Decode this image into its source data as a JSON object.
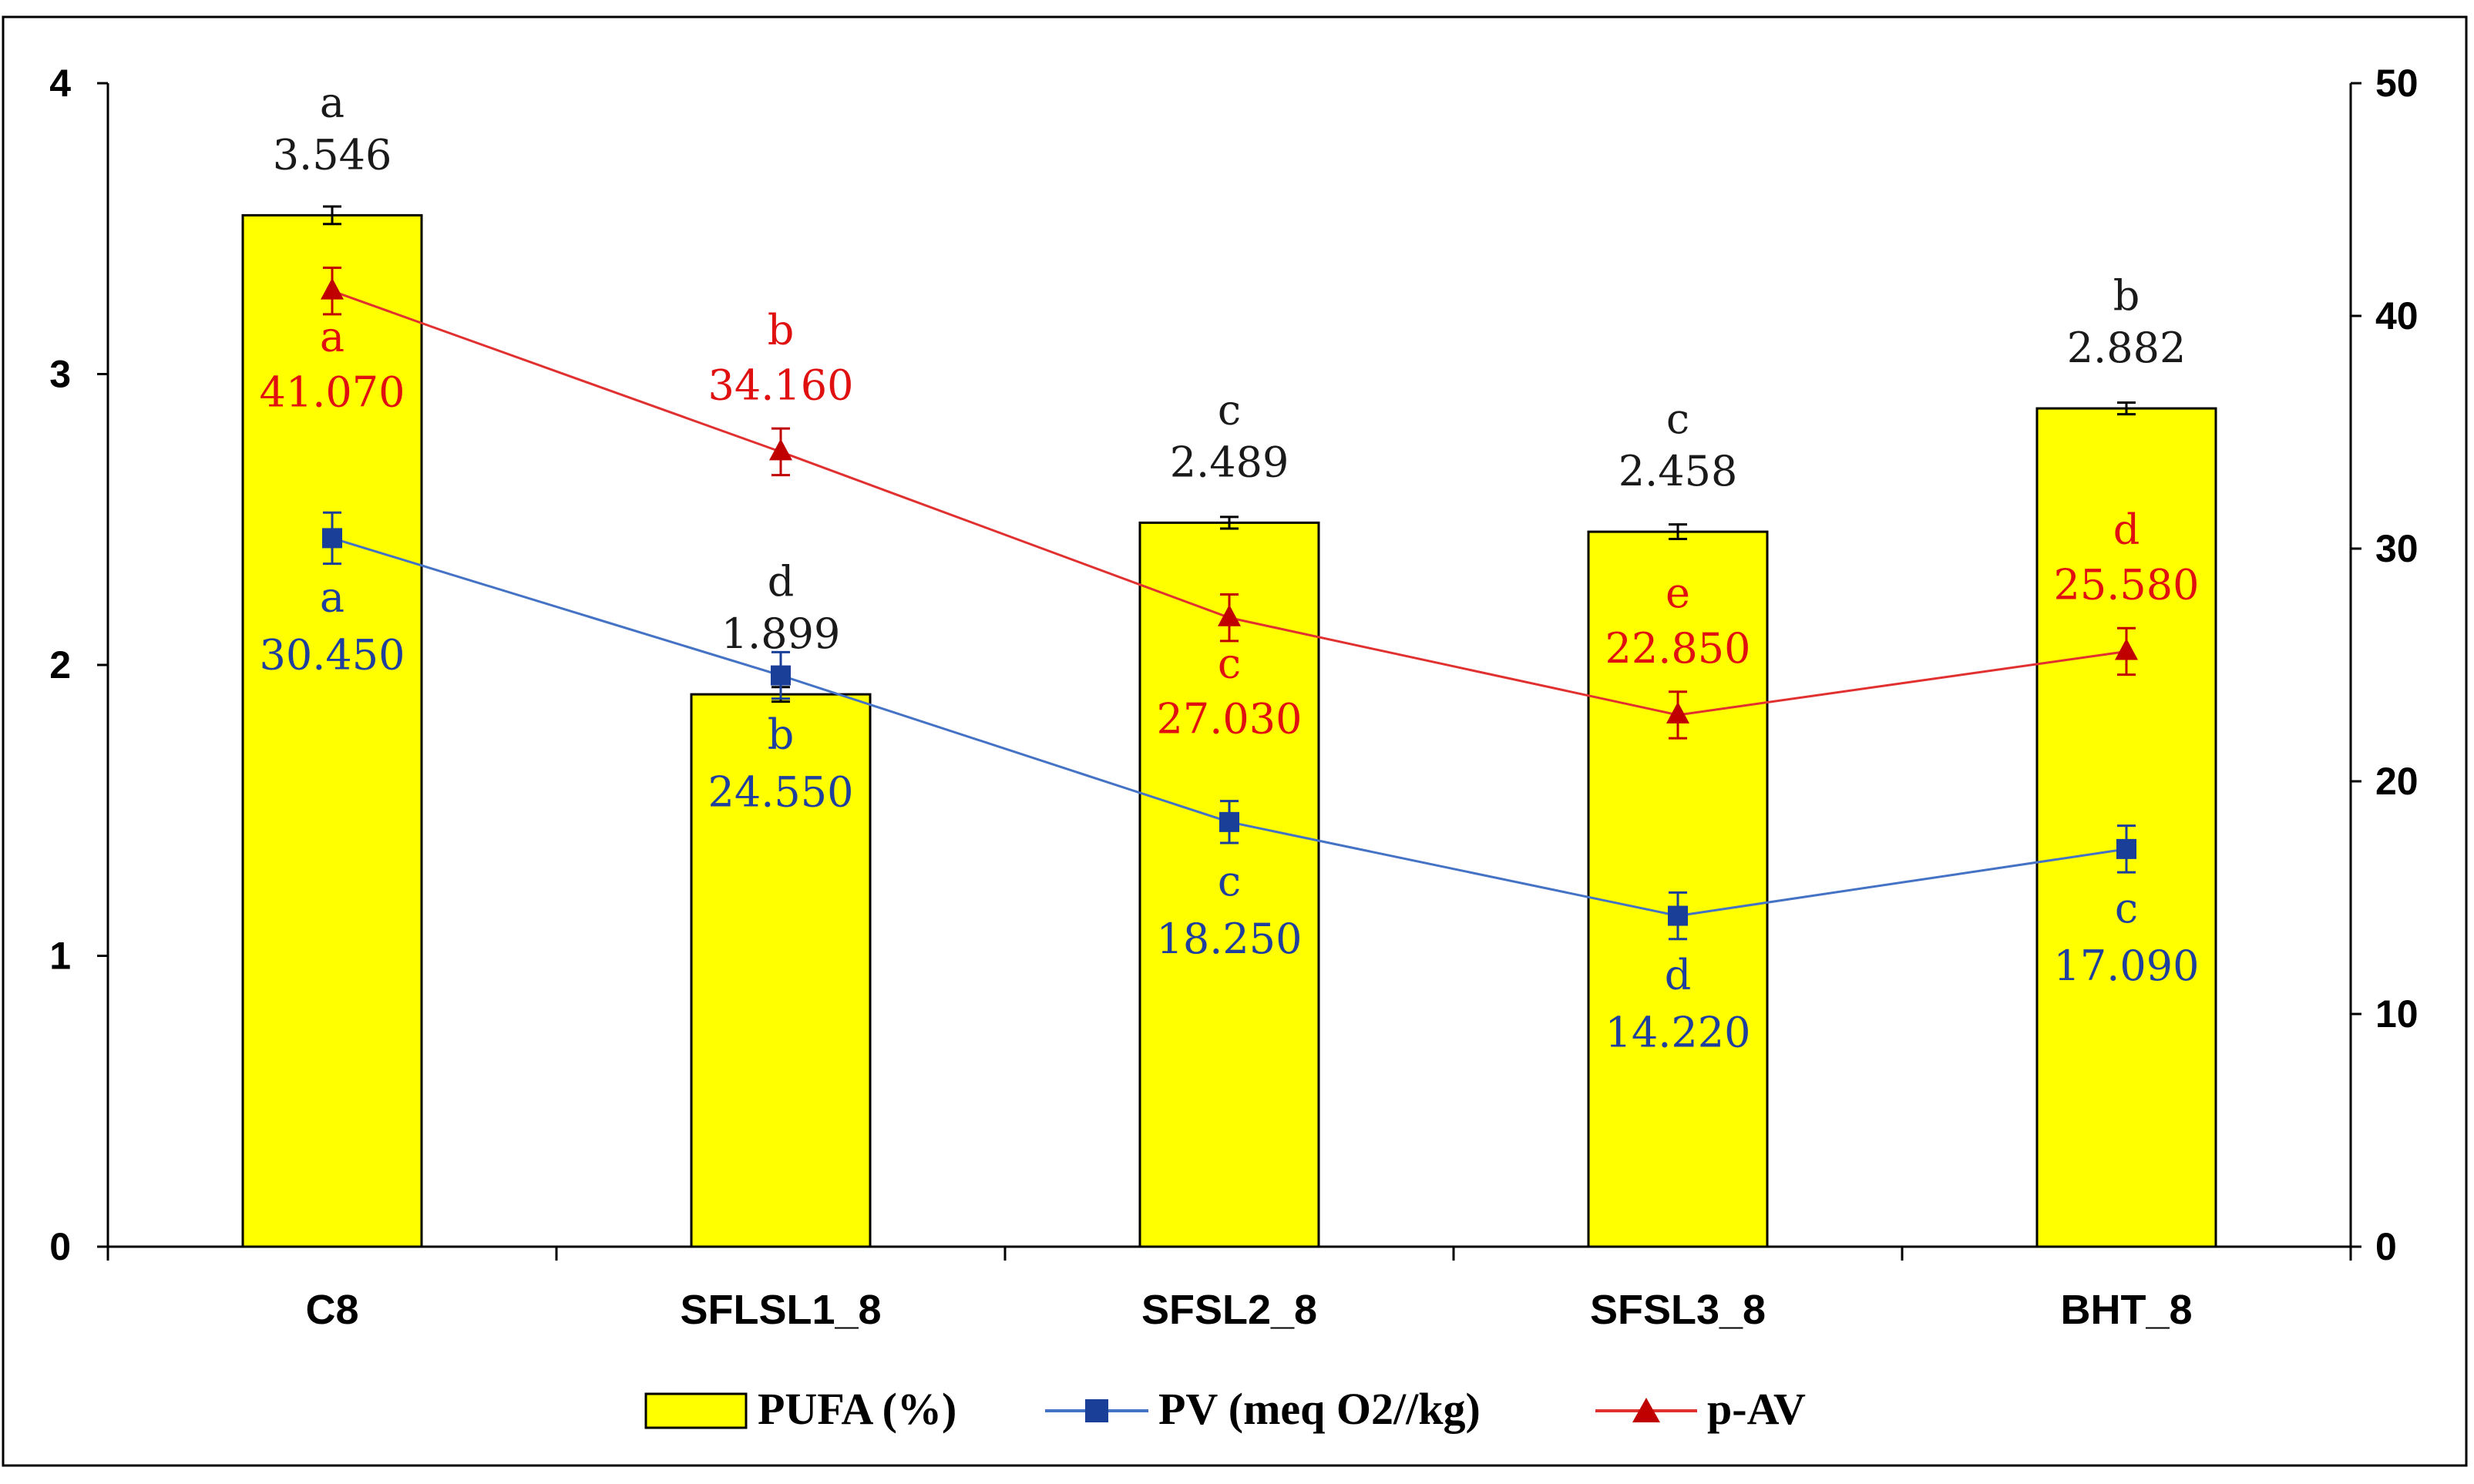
{
  "chart_data": {
    "type": "bar",
    "categories": [
      "C8",
      "SFLSL1_8",
      "SFSL2_8",
      "SFSL3_8",
      "BHT_8"
    ],
    "y_left": {
      "ylim": [
        0,
        4
      ],
      "ticks": [
        0,
        1,
        2,
        3,
        4
      ]
    },
    "y_right": {
      "ylim": [
        0,
        50
      ],
      "ticks": [
        0,
        10,
        20,
        30,
        40,
        50
      ]
    },
    "series": [
      {
        "name": "PUFA (%)",
        "kind": "bar",
        "axis": "left",
        "color": "#ffff00",
        "values": [
          3.546,
          1.899,
          2.489,
          2.458,
          2.882
        ],
        "labels": [
          "3.546",
          "1.899",
          "2.489",
          "2.458",
          "2.882"
        ],
        "errors": [
          0.03,
          0.025,
          0.02,
          0.025,
          0.02
        ],
        "letters": [
          "a",
          "d",
          "c",
          "c",
          "b"
        ]
      },
      {
        "name": "PV (meq O2//kg)",
        "kind": "line",
        "marker": "square",
        "axis": "right",
        "color": "#1a3f99",
        "line_color": "#4472c4",
        "values": [
          30.45,
          24.55,
          18.25,
          14.22,
          17.09
        ],
        "labels": [
          "30.450",
          "24.550",
          "18.250",
          "14.220",
          "17.090"
        ],
        "errors": [
          1.1,
          1.0,
          0.9,
          1.0,
          1.0
        ],
        "letters": [
          "a",
          "b",
          "c",
          "d",
          "c"
        ]
      },
      {
        "name": "p-AV",
        "kind": "line",
        "marker": "triangle",
        "axis": "right",
        "color": "#c00000",
        "line_color": "#e03030",
        "values": [
          41.07,
          34.16,
          27.03,
          22.85,
          25.58
        ],
        "labels": [
          "41.070",
          "34.160",
          "27.030",
          "22.850",
          "25.580"
        ],
        "errors": [
          1.0,
          1.0,
          1.0,
          1.0,
          1.0
        ],
        "letters": [
          "a",
          "b",
          "c",
          "e",
          "d"
        ]
      }
    ],
    "legend": [
      "PUFA (%)",
      "PV (meq O2//kg)",
      "p-AV"
    ],
    "legend_position": "bottom",
    "title": "",
    "xlabel": "",
    "ylabel": ""
  }
}
